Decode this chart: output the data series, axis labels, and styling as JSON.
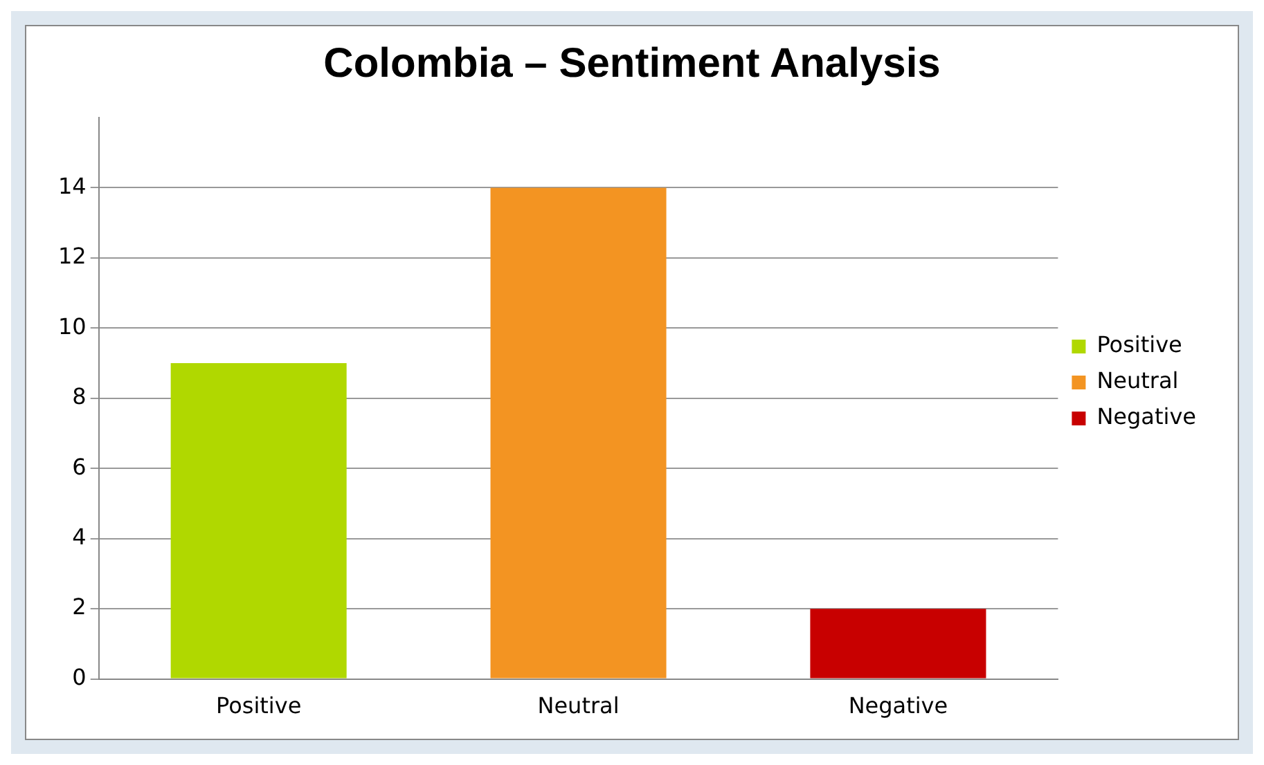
{
  "chart_data": {
    "type": "bar",
    "title": "Colombia – Sentiment Analysis",
    "categories": [
      "Positive",
      "Neutral",
      "Negative"
    ],
    "stacked": true,
    "series": [
      {
        "name": "Positive",
        "color": "#b0d800",
        "values": [
          9,
          null,
          null
        ]
      },
      {
        "name": "Neutral",
        "color": "#f39422",
        "values": [
          null,
          14,
          null
        ]
      },
      {
        "name": "Negative",
        "color": "#c80000",
        "values": [
          null,
          null,
          2
        ]
      }
    ],
    "ylim": [
      0,
      16
    ],
    "yticks": [
      0,
      2,
      4,
      6,
      8,
      10,
      12,
      14
    ],
    "grid": "y",
    "legend": "right"
  }
}
